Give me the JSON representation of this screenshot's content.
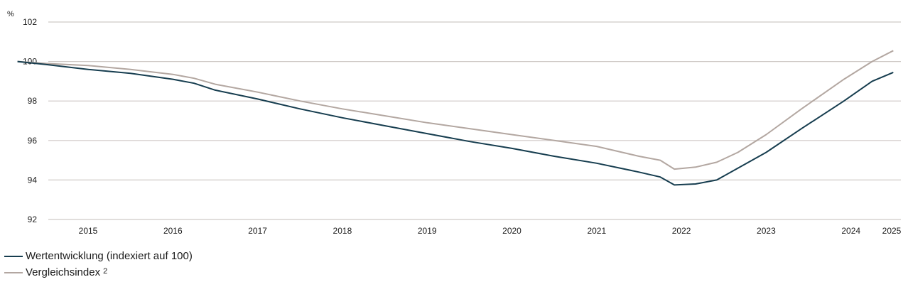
{
  "chart_data": {
    "type": "line",
    "ylabel_unit": "%",
    "ylim": [
      92,
      102
    ],
    "yticks": [
      "92",
      "94",
      "96",
      "98",
      "100",
      "102"
    ],
    "xticks": [
      "2015",
      "2016",
      "2017",
      "2018",
      "2019",
      "2020",
      "2021",
      "2022",
      "2023",
      "2024",
      "2025"
    ],
    "grid": true,
    "series": [
      {
        "name": "Wertentwicklung (indexiert auf 100)",
        "color": "#163d4f",
        "points": [
          [
            "2014-09",
            100.0
          ],
          [
            "2015-01",
            99.85
          ],
          [
            "2015-07",
            99.6
          ],
          [
            "2016-01",
            99.4
          ],
          [
            "2016-07",
            99.1
          ],
          [
            "2016-10",
            98.9
          ],
          [
            "2017-01",
            98.55
          ],
          [
            "2017-07",
            98.1
          ],
          [
            "2018-01",
            97.6
          ],
          [
            "2018-07",
            97.15
          ],
          [
            "2019-01",
            96.75
          ],
          [
            "2019-07",
            96.35
          ],
          [
            "2020-01",
            95.95
          ],
          [
            "2020-07",
            95.6
          ],
          [
            "2021-01",
            95.2
          ],
          [
            "2021-07",
            94.85
          ],
          [
            "2022-01",
            94.4
          ],
          [
            "2022-04",
            94.15
          ],
          [
            "2022-06",
            93.75
          ],
          [
            "2022-09",
            93.8
          ],
          [
            "2022-12",
            94.0
          ],
          [
            "2023-03",
            94.6
          ],
          [
            "2023-07",
            95.4
          ],
          [
            "2023-12",
            96.6
          ],
          [
            "2024-06",
            98.0
          ],
          [
            "2024-10",
            99.0
          ],
          [
            "2025-01",
            99.45
          ]
        ]
      },
      {
        "name": "Vergleichsindex",
        "footnote": "2",
        "color": "#b3a7a1",
        "points": [
          [
            "2014-09",
            100.0
          ],
          [
            "2015-01",
            99.9
          ],
          [
            "2015-07",
            99.8
          ],
          [
            "2016-01",
            99.6
          ],
          [
            "2016-07",
            99.35
          ],
          [
            "2016-10",
            99.15
          ],
          [
            "2017-01",
            98.85
          ],
          [
            "2017-07",
            98.45
          ],
          [
            "2018-01",
            98.0
          ],
          [
            "2018-07",
            97.6
          ],
          [
            "2019-01",
            97.25
          ],
          [
            "2019-07",
            96.9
          ],
          [
            "2020-01",
            96.6
          ],
          [
            "2020-07",
            96.3
          ],
          [
            "2021-01",
            96.0
          ],
          [
            "2021-07",
            95.7
          ],
          [
            "2022-01",
            95.2
          ],
          [
            "2022-04",
            95.0
          ],
          [
            "2022-06",
            94.55
          ],
          [
            "2022-09",
            94.65
          ],
          [
            "2022-12",
            94.9
          ],
          [
            "2023-03",
            95.4
          ],
          [
            "2023-07",
            96.3
          ],
          [
            "2023-12",
            97.6
          ],
          [
            "2024-06",
            99.1
          ],
          [
            "2024-10",
            100.0
          ],
          [
            "2025-01",
            100.55
          ]
        ]
      }
    ]
  }
}
